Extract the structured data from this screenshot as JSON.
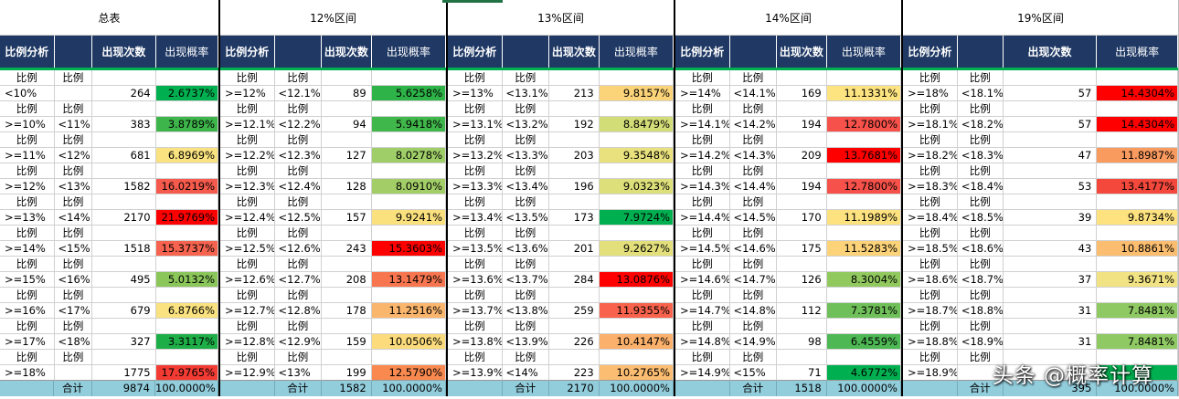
{
  "headers": [
    "比例分析",
    "",
    "出现次数",
    "出现概率"
  ],
  "ratio_label": "比例",
  "total_label": "合计",
  "colors": {
    "header_bg": "#1f3864",
    "header_underline": "#00b050",
    "total_bg": "#92cddc",
    "scale_low": "#63be7b",
    "scale_mid": "#ffeb84",
    "scale_high": "#f8696b",
    "scale_max": "#ff0000"
  },
  "watermark": "头条 @概率计算",
  "blocks": [
    {
      "title": "总表",
      "rows": [
        {
          "from": "<10%",
          "to": "",
          "count": "264",
          "prob": "2.6737%",
          "color": "#00b050"
        },
        {
          "from": ">=10%",
          "to": "<11%",
          "count": "383",
          "prob": "3.8789%",
          "color": "#3db54a"
        },
        {
          "from": ">=11%",
          "to": "<12%",
          "count": "681",
          "prob": "6.8969%",
          "color": "#f9e27f"
        },
        {
          "from": ">=12%",
          "to": "<13%",
          "count": "1582",
          "prob": "16.0219%",
          "color": "#f55a4c"
        },
        {
          "from": ">=13%",
          "to": "<14%",
          "count": "2170",
          "prob": "21.9769%",
          "color": "#ff0000"
        },
        {
          "from": ">=14%",
          "to": "<15%",
          "count": "1518",
          "prob": "15.3737%",
          "color": "#f6634f"
        },
        {
          "from": ">=15%",
          "to": "<16%",
          "count": "495",
          "prob": "5.0132%",
          "color": "#8ac65a"
        },
        {
          "from": ">=16%",
          "to": "<17%",
          "count": "679",
          "prob": "6.8766%",
          "color": "#f9e27f"
        },
        {
          "from": ">=17%",
          "to": "<18%",
          "count": "327",
          "prob": "3.3117%",
          "color": "#1eae47"
        },
        {
          "from": ">=18%",
          "to": "",
          "count": "1775",
          "prob": "17.9765%",
          "color": "#f33b33"
        }
      ],
      "total_count": "9874",
      "total_prob": "100.0000%"
    },
    {
      "title": "12%区间",
      "rows": [
        {
          "from": ">=12%",
          "to": "<12.1%",
          "count": "89",
          "prob": "5.6258%",
          "color": "#2db347"
        },
        {
          "from": ">=12.1%",
          "to": "<12.2%",
          "count": "94",
          "prob": "5.9418%",
          "color": "#40b74a"
        },
        {
          "from": ">=12.2%",
          "to": "<12.3%",
          "count": "127",
          "prob": "8.0278%",
          "color": "#9fcd67"
        },
        {
          "from": ">=12.3%",
          "to": "<12.4%",
          "count": "128",
          "prob": "8.0910%",
          "color": "#a3ce67"
        },
        {
          "from": ">=12.4%",
          "to": "<12.5%",
          "count": "157",
          "prob": "9.9241%",
          "color": "#fbe07e"
        },
        {
          "from": ">=12.5%",
          "to": "<12.6%",
          "count": "243",
          "prob": "15.3603%",
          "color": "#ff0000"
        },
        {
          "from": ">=12.6%",
          "to": "<12.7%",
          "count": "208",
          "prob": "13.1479%",
          "color": "#f8764f"
        },
        {
          "from": ">=12.7%",
          "to": "<12.8%",
          "count": "178",
          "prob": "11.2516%",
          "color": "#fbb66e"
        },
        {
          "from": ">=12.8%",
          "to": "<12.9%",
          "count": "159",
          "prob": "10.0506%",
          "color": "#fbdb7c"
        },
        {
          "from": ">=12.9%",
          "to": "<13%",
          "count": "199",
          "prob": "12.5790%",
          "color": "#f9894f"
        }
      ],
      "total_count": "1582",
      "total_prob": "100.0000%"
    },
    {
      "title": "13%区间",
      "rows": [
        {
          "from": ">=13%",
          "to": "<13.1%",
          "count": "213",
          "prob": "9.8157%",
          "color": "#fbd47a"
        },
        {
          "from": ">=13.1%",
          "to": "<13.2%",
          "count": "192",
          "prob": "8.8479%",
          "color": "#d3dd78"
        },
        {
          "from": ">=13.2%",
          "to": "<13.3%",
          "count": "203",
          "prob": "9.3548%",
          "color": "#e9e17e"
        },
        {
          "from": ">=13.3%",
          "to": "<13.4%",
          "count": "196",
          "prob": "9.0323%",
          "color": "#dcdf7a"
        },
        {
          "from": ">=13.4%",
          "to": "<13.5%",
          "count": "173",
          "prob": "7.9724%",
          "color": "#00b050"
        },
        {
          "from": ">=13.5%",
          "to": "<13.6%",
          "count": "201",
          "prob": "9.2627%",
          "color": "#e3e07c"
        },
        {
          "from": ">=13.6%",
          "to": "<13.7%",
          "count": "284",
          "prob": "13.0876%",
          "color": "#ff0000"
        },
        {
          "from": ">=13.7%",
          "to": "<13.8%",
          "count": "259",
          "prob": "11.9355%",
          "color": "#f9634d"
        },
        {
          "from": ">=13.8%",
          "to": "<13.9%",
          "count": "226",
          "prob": "10.4147%",
          "color": "#fbb06b"
        },
        {
          "from": ">=13.9%",
          "to": "<14%",
          "count": "223",
          "prob": "10.2765%",
          "color": "#fbbd71"
        }
      ],
      "total_count": "2170",
      "total_prob": "100.0000%"
    },
    {
      "title": "14%区间",
      "rows": [
        {
          "from": ">=14%",
          "to": "<14.1%",
          "count": "169",
          "prob": "11.1331%",
          "color": "#fde480"
        },
        {
          "from": ">=14.1%",
          "to": "<14.2%",
          "count": "194",
          "prob": "12.7800%",
          "color": "#f6514a"
        },
        {
          "from": ">=14.2%",
          "to": "<14.3%",
          "count": "209",
          "prob": "13.7681%",
          "color": "#ff0000"
        },
        {
          "from": ">=14.3%",
          "to": "<14.4%",
          "count": "194",
          "prob": "12.7800%",
          "color": "#f6514a"
        },
        {
          "from": ">=14.4%",
          "to": "<14.5%",
          "count": "170",
          "prob": "11.1989%",
          "color": "#fde27f"
        },
        {
          "from": ">=14.5%",
          "to": "<14.6%",
          "count": "175",
          "prob": "11.5283%",
          "color": "#fcd379"
        },
        {
          "from": ">=14.6%",
          "to": "<14.7%",
          "count": "126",
          "prob": "8.3004%",
          "color": "#91c95f"
        },
        {
          "from": ">=14.7%",
          "to": "<14.8%",
          "count": "112",
          "prob": "7.3781%",
          "color": "#6fc05a"
        },
        {
          "from": ">=14.8%",
          "to": "<14.9%",
          "count": "98",
          "prob": "6.4559%",
          "color": "#4db854"
        },
        {
          "from": ">=14.9%",
          "to": "<15%",
          "count": "71",
          "prob": "4.6772%",
          "color": "#00b050"
        }
      ],
      "total_count": "1518",
      "total_prob": "100.0000%"
    },
    {
      "title": "19%区间",
      "rows": [
        {
          "from": ">=18%",
          "to": "<18.1%",
          "count": "57",
          "prob": "14.4304%",
          "color": "#ff0000"
        },
        {
          "from": ">=18.1%",
          "to": "<18.2%",
          "count": "57",
          "prob": "14.4304%",
          "color": "#ff0000"
        },
        {
          "from": ">=18.2%",
          "to": "<18.3%",
          "count": "47",
          "prob": "11.8987%",
          "color": "#f99a5f"
        },
        {
          "from": ">=18.3%",
          "to": "<18.4%",
          "count": "53",
          "prob": "13.4177%",
          "color": "#f5483c"
        },
        {
          "from": ">=18.4%",
          "to": "<18.5%",
          "count": "39",
          "prob": "9.8734%",
          "color": "#fde27f"
        },
        {
          "from": ">=18.5%",
          "to": "<18.6%",
          "count": "43",
          "prob": "10.8861%",
          "color": "#fbbd6f"
        },
        {
          "from": ">=18.6%",
          "to": "<18.7%",
          "count": "37",
          "prob": "9.3671%",
          "color": "#f1e383"
        },
        {
          "from": ">=18.7%",
          "to": "<18.8%",
          "count": "31",
          "prob": "7.8481%",
          "color": "#8fc963"
        },
        {
          "from": ">=18.8%",
          "to": "<18.9%",
          "count": "31",
          "prob": "7.8481%",
          "color": "#8fc963"
        },
        {
          "from": ">=18.9%",
          "to": "",
          "count": "",
          "prob": "",
          "color": "#00b050"
        }
      ],
      "total_count": "395",
      "total_prob": "100.0000%"
    }
  ]
}
